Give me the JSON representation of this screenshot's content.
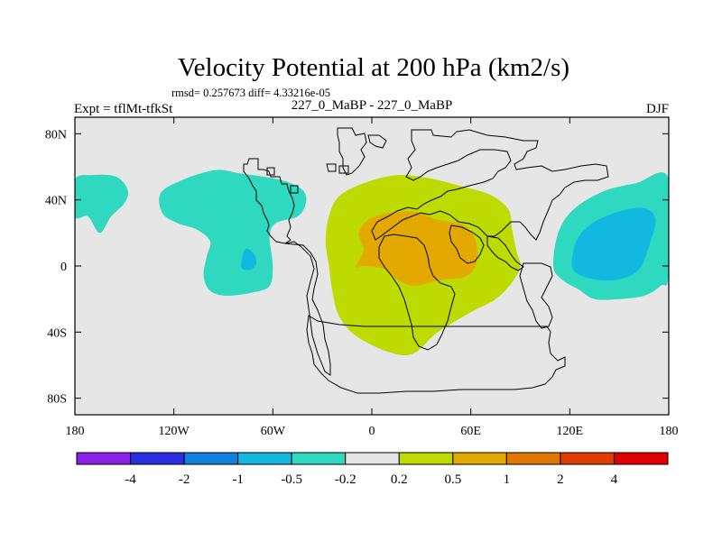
{
  "title": "Velocity Potential at 200 hPa (km2/s)",
  "stats_line": "rmsd= 0.257673 diff= 4.33216e-05",
  "experiment": "Expt = tflMt-tfkSt",
  "comparison": "227_0_MaBP - 227_0_MaBP",
  "season": "DJF",
  "colors": {
    "background_field": "#e6e6e6",
    "neg_04": "#2fd9c0",
    "neg_08": "#12b8e0",
    "pos_04": "#bddb00",
    "pos_075": "#e3a900",
    "frame": "#000000"
  },
  "chart_data": {
    "type": "heatmap",
    "title": "Velocity Potential at 200 hPa (km2/s)",
    "projection": "cylindrical equidistant",
    "xlim": [
      -180,
      180
    ],
    "ylim": [
      -90,
      90
    ],
    "x_ticks": [
      {
        "lon": -180,
        "label": "180"
      },
      {
        "lon": -120,
        "label": "120W"
      },
      {
        "lon": -60,
        "label": "60W"
      },
      {
        "lon": 0,
        "label": "0"
      },
      {
        "lon": 60,
        "label": "60E"
      },
      {
        "lon": 120,
        "label": "120E"
      },
      {
        "lon": 180,
        "label": "180"
      }
    ],
    "y_ticks": [
      {
        "lat": 80,
        "label": "80N"
      },
      {
        "lat": 40,
        "label": "40N"
      },
      {
        "lat": 0,
        "label": "0"
      },
      {
        "lat": -40,
        "label": "40S"
      },
      {
        "lat": -80,
        "label": "80S"
      }
    ],
    "colorbar": {
      "colors": [
        "#8a1fe8",
        "#2a30e0",
        "#1080e0",
        "#12b8e0",
        "#2fd9c0",
        "#e6e6e6",
        "#bddb00",
        "#e3a900",
        "#e07800",
        "#e03c00",
        "#e00000"
      ],
      "labels": [
        "-4",
        "-2",
        "-1",
        "-0.5",
        "-0.2",
        "0.2",
        "0.5",
        "1",
        "2",
        "4"
      ]
    },
    "regions": [
      {
        "name": "pacific-west-neg",
        "level": "neg_04",
        "points": [
          [
            -180,
            52
          ],
          [
            -170,
            55
          ],
          [
            -155,
            54
          ],
          [
            -148,
            46
          ],
          [
            -150,
            38
          ],
          [
            -158,
            30
          ],
          [
            -165,
            20
          ],
          [
            -172,
            30
          ],
          [
            -180,
            30
          ]
        ]
      },
      {
        "name": "pacific-east-neg",
        "level": "neg_04",
        "points": [
          [
            -128,
            44
          ],
          [
            -115,
            52
          ],
          [
            -95,
            58
          ],
          [
            -80,
            56
          ],
          [
            -55,
            52
          ],
          [
            -42,
            46
          ],
          [
            -40,
            38
          ],
          [
            -45,
            30
          ],
          [
            -58,
            26
          ],
          [
            -62,
            18
          ],
          [
            -60,
            0
          ],
          [
            -62,
            -12
          ],
          [
            -72,
            -16
          ],
          [
            -88,
            -18
          ],
          [
            -98,
            -15
          ],
          [
            -102,
            -6
          ],
          [
            -100,
            6
          ],
          [
            -98,
            15
          ],
          [
            -106,
            22
          ],
          [
            -118,
            26
          ],
          [
            -127,
            32
          ]
        ]
      },
      {
        "name": "pacific-east-core",
        "level": "neg_08",
        "points": [
          [
            -77,
            10
          ],
          [
            -72,
            8
          ],
          [
            -70,
            2
          ],
          [
            -73,
            -2
          ],
          [
            -79,
            -1
          ]
        ]
      },
      {
        "name": "indowest-pacific-neg",
        "level": "neg_04",
        "points": [
          [
            110,
            0
          ],
          [
            113,
            20
          ],
          [
            122,
            34
          ],
          [
            140,
            45
          ],
          [
            160,
            50
          ],
          [
            180,
            53
          ],
          [
            180,
            -5
          ],
          [
            175,
            -12
          ],
          [
            165,
            -18
          ],
          [
            150,
            -20
          ],
          [
            135,
            -20
          ],
          [
            125,
            -14
          ],
          [
            115,
            -8
          ]
        ]
      },
      {
        "name": "west-pacific-core",
        "level": "neg_08",
        "points": [
          [
            122,
            -2
          ],
          [
            124,
            15
          ],
          [
            134,
            26
          ],
          [
            150,
            33
          ],
          [
            165,
            35
          ],
          [
            172,
            28
          ],
          [
            168,
            12
          ],
          [
            162,
            -2
          ],
          [
            150,
            -8
          ],
          [
            135,
            -8
          ]
        ]
      },
      {
        "name": "africa-asia-pos",
        "level": "pos_04",
        "points": [
          [
            -26,
            30
          ],
          [
            -20,
            42
          ],
          [
            -5,
            50
          ],
          [
            15,
            55
          ],
          [
            35,
            53
          ],
          [
            55,
            48
          ],
          [
            72,
            43
          ],
          [
            83,
            34
          ],
          [
            85,
            22
          ],
          [
            88,
            8
          ],
          [
            90,
            0
          ],
          [
            85,
            -10
          ],
          [
            75,
            -20
          ],
          [
            60,
            -28
          ],
          [
            40,
            -40
          ],
          [
            25,
            -53
          ],
          [
            10,
            -52
          ],
          [
            -10,
            -42
          ],
          [
            -20,
            -30
          ],
          [
            -24,
            -15
          ],
          [
            -26,
            0
          ],
          [
            -28,
            15
          ]
        ]
      },
      {
        "name": "africa-asia-core",
        "level": "pos_075",
        "points": [
          [
            -8,
            20
          ],
          [
            -2,
            28
          ],
          [
            10,
            32
          ],
          [
            25,
            33
          ],
          [
            40,
            28
          ],
          [
            55,
            25
          ],
          [
            62,
            18
          ],
          [
            64,
            8
          ],
          [
            62,
            -2
          ],
          [
            55,
            -7
          ],
          [
            45,
            -8
          ],
          [
            35,
            -10
          ],
          [
            25,
            -12
          ],
          [
            15,
            -8
          ],
          [
            8,
            -2
          ],
          [
            -5,
            0
          ],
          [
            -10,
            -1
          ],
          [
            -8,
            3
          ],
          [
            -5,
            10
          ]
        ]
      }
    ]
  }
}
